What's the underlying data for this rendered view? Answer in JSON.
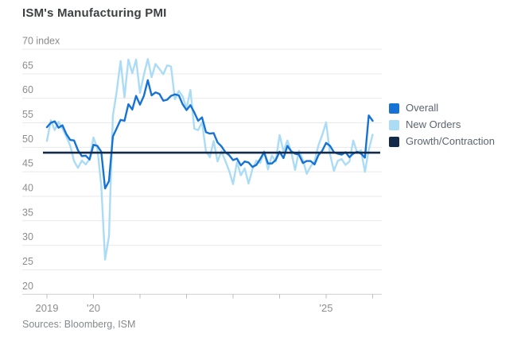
{
  "title": "ISM's Manufacturing PMI",
  "source": "Sources: Bloomberg, ISM",
  "legend": [
    {
      "label": "Overall",
      "color": "#1673d3"
    },
    {
      "label": "New Orders",
      "color": "#abdcf6"
    },
    {
      "label": "Growth/Contraction",
      "color": "#132a49"
    }
  ],
  "colors": {
    "gridline": "#e9e9e9",
    "axis_line": "#cfcfcf",
    "tick_text": "#8c8c8c",
    "title_text": "#3d4043",
    "legend_text": "#5b6570",
    "source_text": "#85898d"
  },
  "chart_data": {
    "type": "line",
    "title": "ISM's Manufacturing PMI",
    "unit_label": "70 index",
    "frequency": "monthly",
    "x_start": "2019-01",
    "x_end": "2026-01",
    "ylim": [
      20,
      70
    ],
    "grid": "horizontal",
    "legend_position": "right",
    "y_ticks": [
      {
        "value": 70,
        "label": "70 index"
      },
      {
        "value": 65,
        "label": "65"
      },
      {
        "value": 60,
        "label": "60"
      },
      {
        "value": 55,
        "label": "55"
      },
      {
        "value": 50,
        "label": "50"
      },
      {
        "value": 45,
        "label": "45"
      },
      {
        "value": 40,
        "label": "40"
      },
      {
        "value": 35,
        "label": "35"
      },
      {
        "value": 30,
        "label": "30"
      },
      {
        "value": 25,
        "label": "25"
      },
      {
        "value": 20,
        "label": "20"
      }
    ],
    "x_ticks": [
      {
        "year": "2019",
        "label": "2019"
      },
      {
        "year": "2020",
        "label": "'20"
      },
      {
        "year": "2021",
        "label": ""
      },
      {
        "year": "2022",
        "label": ""
      },
      {
        "year": "2023",
        "label": ""
      },
      {
        "year": "2024",
        "label": ""
      },
      {
        "year": "2025",
        "label": "'25"
      },
      {
        "year": "2026",
        "label": ""
      }
    ],
    "threshold": {
      "name": "Growth/Contraction",
      "value": 48.9
    },
    "series": [
      {
        "name": "Overall",
        "color": "#1673d3",
        "values": [
          54.1,
          55.0,
          55.3,
          54.0,
          54.5,
          52.7,
          51.5,
          51.4,
          49.4,
          48.2,
          48.3,
          47.5,
          50.5,
          50.3,
          49.1,
          41.6,
          43.1,
          52.2,
          53.9,
          55.6,
          55.4,
          58.8,
          57.7,
          60.5,
          58.7,
          60.5,
          63.7,
          60.6,
          61.2,
          60.9,
          59.5,
          59.7,
          60.5,
          60.8,
          60.6,
          58.8,
          57.6,
          58.6,
          57.1,
          55.4,
          56.1,
          53.1,
          52.8,
          52.9,
          51.0,
          50.2,
          49.0,
          48.4,
          47.4,
          47.7,
          46.3,
          47.1,
          46.9,
          46.0,
          46.4,
          47.6,
          49.0,
          46.7,
          46.7,
          47.4,
          49.1,
          47.8,
          50.3,
          49.2,
          48.7,
          48.5,
          46.8,
          47.2,
          47.2,
          46.5,
          48.4,
          49.3,
          50.9,
          50.3,
          49.0,
          48.7,
          48.5,
          49.0,
          48.0,
          48.7,
          49.1,
          48.7,
          47.9,
          56.5,
          55.4
        ]
      },
      {
        "name": "New Orders",
        "color": "#abdcf6",
        "values": [
          51.3,
          55.5,
          53.5,
          55.2,
          53.8,
          52.2,
          50.3,
          47.2,
          45.8,
          47.3,
          46.5,
          47.6,
          52.0,
          49.8,
          42.2,
          27.1,
          31.8,
          56.4,
          61.5,
          67.6,
          60.2,
          67.9,
          65.1,
          67.9,
          61.1,
          64.8,
          68.0,
          64.3,
          67.0,
          66.0,
          64.9,
          66.7,
          66.5,
          59.8,
          61.5,
          60.4,
          57.9,
          61.7,
          53.8,
          53.5,
          55.1,
          49.2,
          48.0,
          51.3,
          47.1,
          49.2,
          47.2,
          45.2,
          42.5,
          47.0,
          44.3,
          45.7,
          42.6,
          45.6,
          47.3,
          46.8,
          49.2,
          45.5,
          48.3,
          47.1,
          52.5,
          49.2,
          51.4,
          49.1,
          45.4,
          49.3,
          47.4,
          44.6,
          46.1,
          47.1,
          50.4,
          52.5,
          55.1,
          48.6,
          45.2,
          47.2,
          47.6,
          46.4,
          47.1,
          51.4,
          48.9,
          49.4,
          45.0,
          49.5,
          52.6
        ]
      }
    ],
    "source": "Sources: Bloomberg, ISM"
  }
}
